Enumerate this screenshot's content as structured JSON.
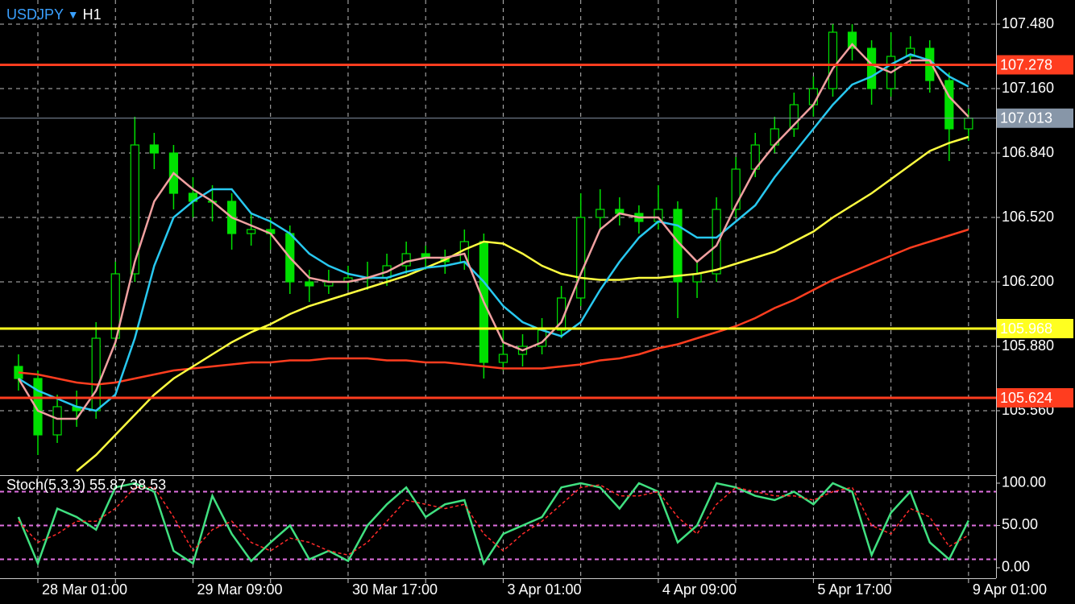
{
  "header": {
    "symbol": "USDJPY",
    "arrow": "▼",
    "timeframe": "H1"
  },
  "chart_data": [
    {
      "type": "candlestick",
      "categories": [
        null,
        "28 Mar 01:00",
        null,
        null,
        null,
        null,
        null,
        null,
        null,
        "29 Mar 09:00",
        null,
        null,
        null,
        null,
        null,
        null,
        null,
        "30 Mar 17:00",
        null,
        null,
        null,
        null,
        null,
        null,
        null,
        "3 Apr 01:00",
        null,
        null,
        null,
        null,
        null,
        null,
        null,
        "4 Apr 09:00",
        null,
        null,
        null,
        null,
        null,
        null,
        null,
        "5 Apr 17:00",
        null,
        null,
        null,
        null,
        null,
        null,
        null,
        "9 Apr 01:00"
      ],
      "open": [
        105.78,
        105.72,
        105.44,
        105.58,
        105.56,
        105.92,
        106.24,
        106.88,
        106.84,
        106.64,
        106.6,
        106.6,
        106.44,
        106.46,
        106.44,
        106.2,
        106.18,
        106.2,
        106.22,
        106.22,
        106.28,
        106.34,
        106.32,
        106.3,
        106.4,
        105.8,
        105.84,
        105.88,
        105.96,
        106.12,
        106.52,
        106.56,
        106.54,
        106.5,
        106.56,
        106.2,
        106.24,
        106.56,
        106.76,
        106.88,
        106.96,
        107.08,
        107.16,
        107.44,
        107.36,
        107.16,
        107.32,
        107.36,
        107.2,
        106.96
      ],
      "high": [
        105.84,
        105.76,
        105.64,
        105.66,
        106.0,
        106.3,
        107.02,
        106.94,
        106.88,
        106.72,
        106.68,
        106.64,
        106.54,
        106.52,
        106.48,
        106.26,
        106.26,
        106.28,
        106.3,
        106.34,
        106.4,
        106.38,
        106.36,
        106.46,
        106.44,
        105.96,
        105.94,
        106.02,
        106.18,
        106.64,
        106.66,
        106.62,
        106.58,
        106.68,
        106.6,
        106.3,
        106.62,
        106.82,
        106.94,
        107.02,
        107.14,
        107.22,
        107.48,
        107.48,
        107.4,
        107.44,
        107.42,
        107.4,
        107.24,
        107.06
      ],
      "low": [
        105.66,
        105.34,
        105.4,
        105.48,
        105.52,
        105.88,
        106.2,
        106.76,
        106.56,
        106.52,
        106.5,
        106.36,
        106.38,
        106.36,
        106.14,
        106.1,
        106.14,
        106.16,
        106.16,
        106.18,
        106.24,
        106.26,
        106.24,
        106.26,
        105.72,
        105.76,
        105.78,
        105.84,
        105.92,
        106.08,
        106.46,
        106.48,
        106.44,
        106.46,
        106.02,
        106.12,
        106.2,
        106.52,
        106.72,
        106.84,
        106.92,
        107.02,
        107.12,
        107.3,
        107.08,
        107.12,
        107.28,
        107.14,
        106.8,
        106.9
      ],
      "close": [
        105.72,
        105.44,
        105.58,
        105.56,
        105.92,
        106.24,
        106.88,
        106.84,
        106.64,
        106.6,
        106.6,
        106.44,
        106.46,
        106.44,
        106.2,
        106.18,
        106.2,
        106.22,
        106.22,
        106.28,
        106.34,
        106.32,
        106.3,
        106.4,
        105.8,
        105.84,
        105.88,
        105.96,
        106.12,
        106.52,
        106.56,
        106.54,
        106.5,
        106.56,
        106.2,
        106.24,
        106.56,
        106.76,
        106.88,
        106.96,
        107.08,
        107.16,
        107.44,
        107.36,
        107.16,
        107.32,
        107.36,
        107.2,
        106.96,
        107.013
      ],
      "candle_color": "#00e000",
      "up_fill": "#000000",
      "down_fill": "#00e000",
      "series": [
        {
          "color": "#ff3d1f",
          "values": [
            105.75,
            105.74,
            105.72,
            105.7,
            105.69,
            105.7,
            105.72,
            105.74,
            105.76,
            105.77,
            105.78,
            105.79,
            105.8,
            105.8,
            105.81,
            105.81,
            105.82,
            105.82,
            105.82,
            105.81,
            105.81,
            105.8,
            105.8,
            105.79,
            105.78,
            105.77,
            105.77,
            105.77,
            105.78,
            105.79,
            105.81,
            105.82,
            105.84,
            105.87,
            105.89,
            105.92,
            105.95,
            105.98,
            106.02,
            106.07,
            106.11,
            106.16,
            106.21,
            106.25,
            106.29,
            106.33,
            106.37,
            106.4,
            106.43,
            106.46
          ]
        },
        {
          "color": "#ffff40",
          "values": [
            null,
            null,
            null,
            105.26,
            105.34,
            105.44,
            105.54,
            105.64,
            105.72,
            105.78,
            105.84,
            105.9,
            105.95,
            105.99,
            106.04,
            106.08,
            106.11,
            106.14,
            106.17,
            106.2,
            106.23,
            106.27,
            106.31,
            106.36,
            106.4,
            106.39,
            106.34,
            106.28,
            106.24,
            106.22,
            106.21,
            106.21,
            106.22,
            106.22,
            106.23,
            106.24,
            106.26,
            106.29,
            106.32,
            106.35,
            106.4,
            106.45,
            106.52,
            106.58,
            106.64,
            106.71,
            106.78,
            106.85,
            106.89,
            106.92
          ]
        },
        {
          "color": "#28c8f0",
          "values": [
            105.72,
            105.66,
            105.62,
            105.58,
            105.56,
            105.64,
            105.92,
            106.28,
            106.52,
            106.6,
            106.66,
            106.66,
            106.54,
            106.5,
            106.44,
            106.34,
            106.28,
            106.24,
            106.22,
            106.22,
            106.25,
            106.27,
            106.28,
            106.3,
            106.2,
            106.08,
            106.0,
            105.96,
            105.93,
            106.0,
            106.16,
            106.3,
            106.42,
            106.5,
            106.48,
            106.42,
            106.42,
            106.5,
            106.58,
            106.72,
            106.84,
            106.96,
            107.08,
            107.18,
            107.22,
            107.28,
            107.33,
            107.3,
            107.22,
            107.17
          ]
        },
        {
          "color": "#f0a0a0",
          "values": [
            105.72,
            105.56,
            105.52,
            105.52,
            105.66,
            105.9,
            106.3,
            106.6,
            106.74,
            106.66,
            106.6,
            106.52,
            106.48,
            106.44,
            106.32,
            106.22,
            106.2,
            106.2,
            106.22,
            106.25,
            106.3,
            106.32,
            106.32,
            106.34,
            106.1,
            105.9,
            105.86,
            105.9,
            106.0,
            106.24,
            106.46,
            106.54,
            106.52,
            106.52,
            106.4,
            106.3,
            106.38,
            106.58,
            106.76,
            106.88,
            106.98,
            107.08,
            107.26,
            107.38,
            107.28,
            107.24,
            107.3,
            107.3,
            107.12,
            107.02
          ]
        }
      ],
      "levels": [
        {
          "value": 107.278,
          "color": "#ff3d1f",
          "label_color": "#000000"
        },
        {
          "value": 105.968,
          "color": "#ffff20",
          "label_color": "#000000"
        },
        {
          "value": 105.624,
          "color": "#ff3d1f",
          "label_color": "#000000"
        }
      ],
      "current_price": {
        "value": 107.013,
        "color": "#8796a8",
        "label_color": "#000000"
      },
      "ylim": [
        105.24,
        107.6
      ],
      "yticks": [
        {
          "value": 107.48,
          "label": "107.480"
        },
        {
          "value": 107.16,
          "label": "107.160"
        },
        {
          "value": 106.84,
          "label": "106.840"
        },
        {
          "value": 106.52,
          "label": "106.520"
        },
        {
          "value": 106.2,
          "label": "106.200"
        },
        {
          "value": 105.88,
          "label": "105.880"
        },
        {
          "value": 105.56,
          "label": "105.560"
        }
      ],
      "grid": true
    },
    {
      "type": "line",
      "title": "Stoch(5,3,3) 55.87 38.53",
      "series": [
        {
          "color": "#40e080",
          "style": "solid",
          "values": [
            60,
            5,
            70,
            60,
            45,
            95,
            100,
            90,
            20,
            5,
            85,
            40,
            8,
            30,
            50,
            10,
            20,
            8,
            50,
            75,
            95,
            60,
            75,
            80,
            5,
            40,
            50,
            60,
            95,
            100,
            95,
            70,
            100,
            90,
            30,
            50,
            100,
            95,
            85,
            80,
            90,
            75,
            100,
            90,
            15,
            65,
            90,
            30,
            10,
            55.87
          ]
        },
        {
          "color": "#ff2a2a",
          "style": "dashed",
          "values": [
            55,
            30,
            40,
            55,
            55,
            70,
            95,
            95,
            60,
            20,
            45,
            55,
            30,
            20,
            35,
            30,
            20,
            15,
            30,
            55,
            80,
            75,
            70,
            75,
            40,
            20,
            40,
            55,
            75,
            95,
            98,
            85,
            85,
            90,
            60,
            40,
            75,
            95,
            90,
            85,
            85,
            80,
            90,
            95,
            50,
            40,
            70,
            60,
            25,
            38.53
          ]
        }
      ],
      "levels": [
        10,
        50,
        90
      ],
      "level_color": "#e070e0",
      "ylim": [
        -12.4,
        109.5
      ],
      "yticks": [
        {
          "value": 100,
          "label": "100.00"
        },
        {
          "value": 50,
          "label": "50.00"
        },
        {
          "value": 0,
          "label": "0.00"
        }
      ]
    }
  ]
}
